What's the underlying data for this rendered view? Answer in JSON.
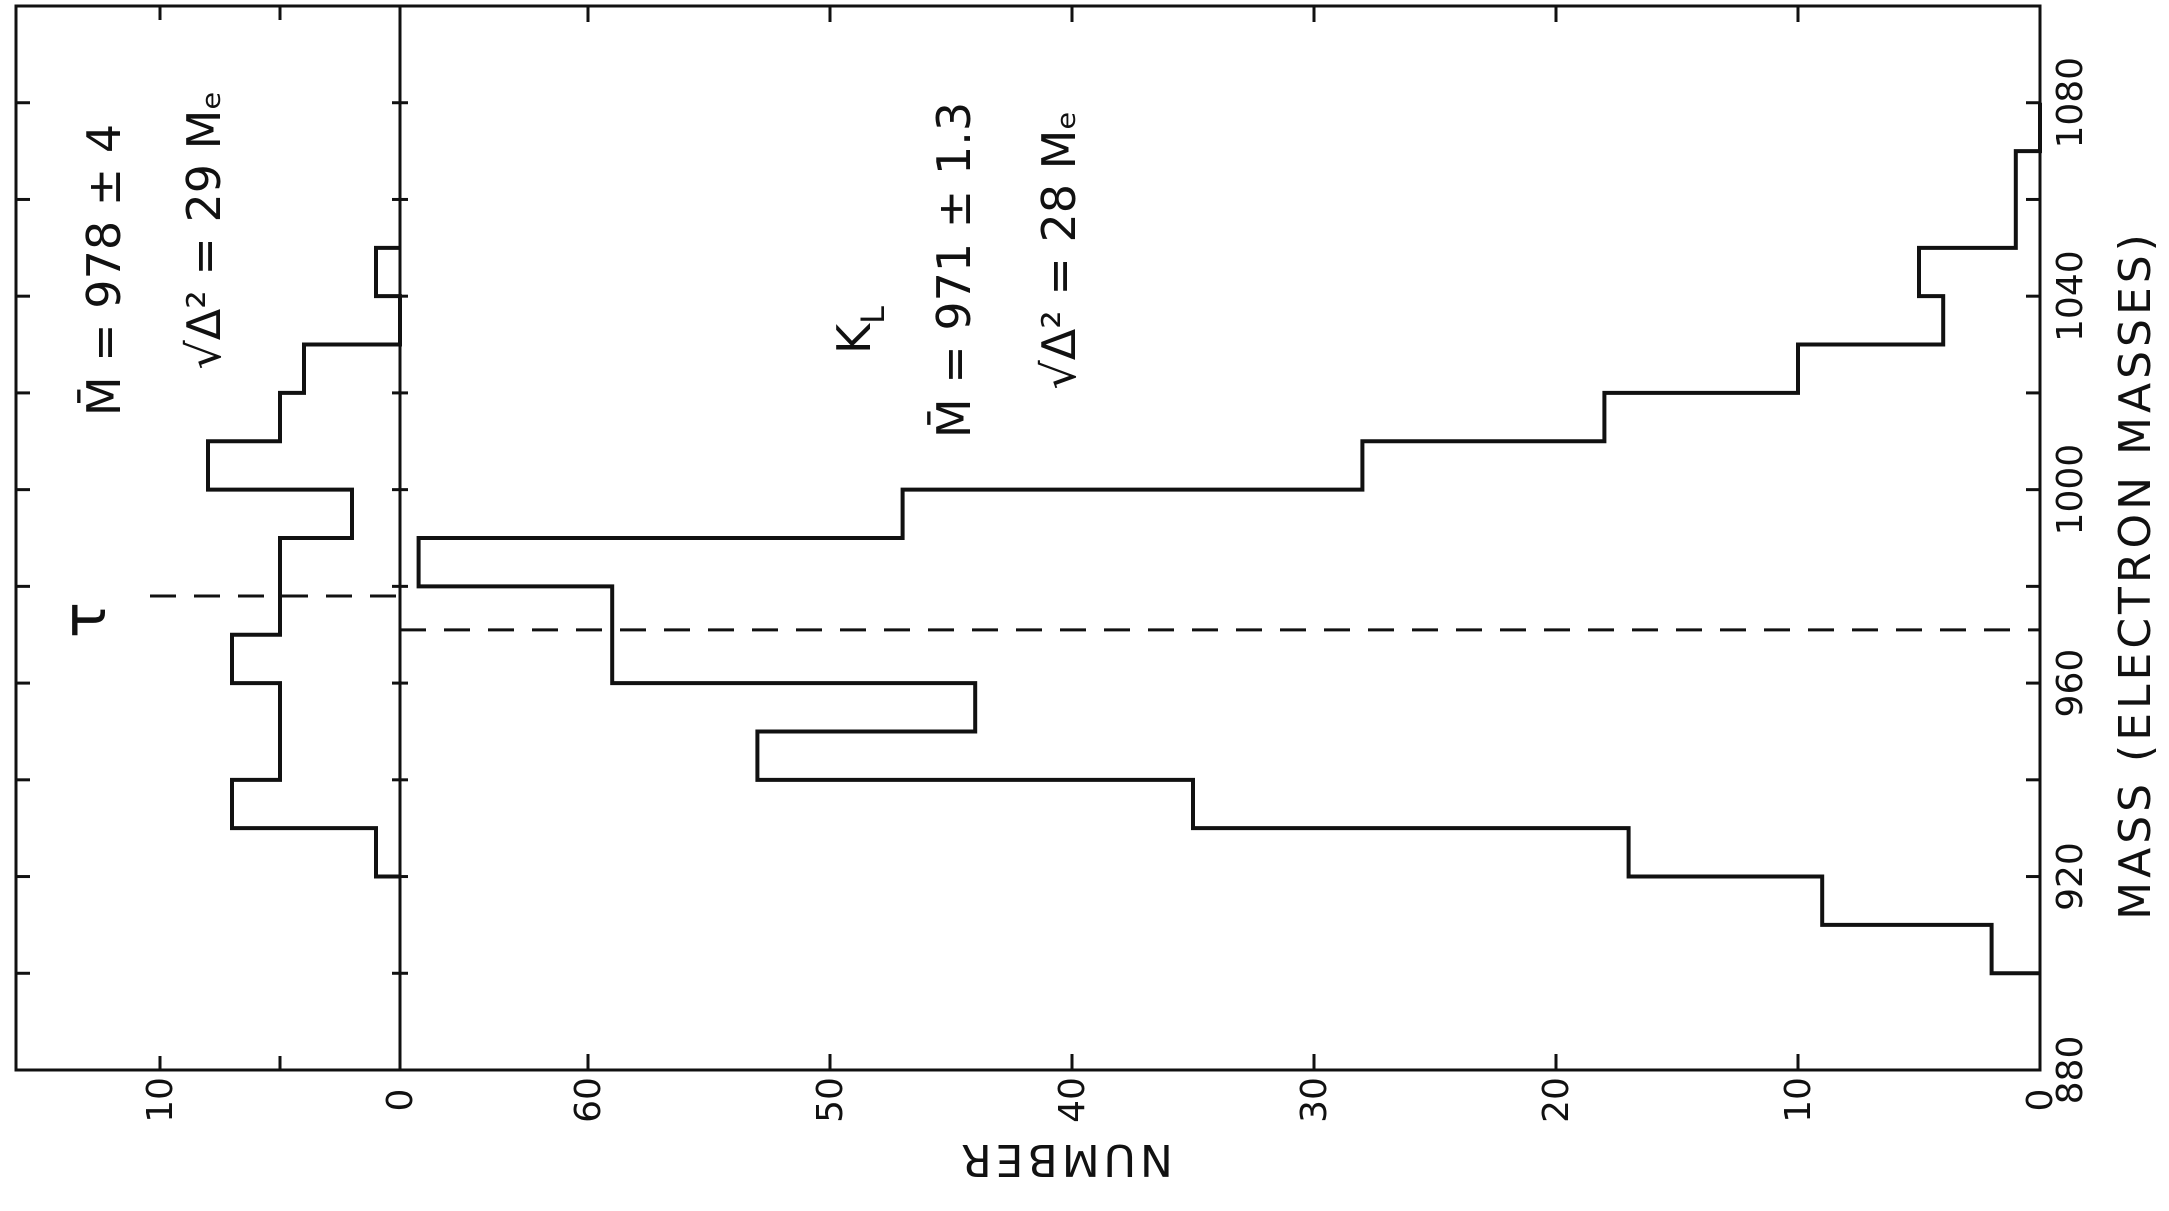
{
  "chart_data": [
    {
      "type": "bar",
      "panel": "tau",
      "annotations": {
        "symbol": "τ",
        "mean": "M̄ = 978 ± 4",
        "rms": "√Δ² = 29 Mₑ"
      },
      "x": {
        "label": "MASS (ELECTRON MASSES)",
        "range": [
          880,
          1100
        ],
        "ticks": [
          880,
          900,
          920,
          940,
          960,
          980,
          1000,
          1020,
          1040,
          1060,
          1080,
          1100
        ],
        "tick_labels": [
          "880",
          "920",
          "960",
          "1000",
          "1040",
          "1080"
        ]
      },
      "y": {
        "label": "NUMBER",
        "range": [
          0,
          16
        ],
        "tick_labels": [
          "0",
          "10"
        ]
      },
      "bins": [
        {
          "from": 920,
          "to": 930,
          "value": 1
        },
        {
          "from": 930,
          "to": 940,
          "value": 7
        },
        {
          "from": 940,
          "to": 960,
          "value": 5
        },
        {
          "from": 960,
          "to": 970,
          "value": 7
        },
        {
          "from": 970,
          "to": 990,
          "value": 5
        },
        {
          "from": 990,
          "to": 1000,
          "value": 2
        },
        {
          "from": 1000,
          "to": 1010,
          "value": 8
        },
        {
          "from": 1010,
          "to": 1020,
          "value": 5
        },
        {
          "from": 1020,
          "to": 1030,
          "value": 4
        },
        {
          "from": 1030,
          "to": 1040,
          "value": 0
        },
        {
          "from": 1040,
          "to": 1050,
          "value": 1
        }
      ],
      "mean_line": 978
    },
    {
      "type": "bar",
      "panel": "K_L",
      "annotations": {
        "symbol": "K",
        "symbol_sub": "L",
        "mean": "M̄ = 971 ± 1.3",
        "rms": "√Δ² = 28 Mₑ"
      },
      "x": {
        "label": "MASS (ELECTRON MASSES)",
        "range": [
          880,
          1100
        ],
        "ticks": [
          880,
          900,
          920,
          940,
          960,
          980,
          1000,
          1020,
          1040,
          1060,
          1080,
          1100
        ],
        "tick_labels": [
          "880",
          "920",
          "960",
          "1000",
          "1040",
          "1080"
        ]
      },
      "y": {
        "label": "NUMBER",
        "range": [
          0,
          69
        ],
        "tick_labels": [
          "0",
          "10",
          "20",
          "30",
          "40",
          "50",
          "60"
        ]
      },
      "bins": [
        {
          "from": 900,
          "to": 910,
          "value": 2
        },
        {
          "from": 910,
          "to": 920,
          "value": 9
        },
        {
          "from": 920,
          "to": 930,
          "value": 17
        },
        {
          "from": 930,
          "to": 940,
          "value": 35
        },
        {
          "from": 940,
          "to": 950,
          "value": 53
        },
        {
          "from": 950,
          "to": 960,
          "value": 44
        },
        {
          "from": 960,
          "to": 980,
          "value": 59
        },
        {
          "from": 980,
          "to": 990,
          "value": 67
        },
        {
          "from": 990,
          "to": 1000,
          "value": 47
        },
        {
          "from": 1000,
          "to": 1010,
          "value": 28
        },
        {
          "from": 1010,
          "to": 1020,
          "value": 18
        },
        {
          "from": 1020,
          "to": 1030,
          "value": 10
        },
        {
          "from": 1030,
          "to": 1040,
          "value": 4
        },
        {
          "from": 1040,
          "to": 1050,
          "value": 5
        },
        {
          "from": 1050,
          "to": 1070,
          "value": 1
        },
        {
          "from": 1070,
          "to": 1080,
          "value": 0
        }
      ],
      "mean_line": 971
    }
  ]
}
